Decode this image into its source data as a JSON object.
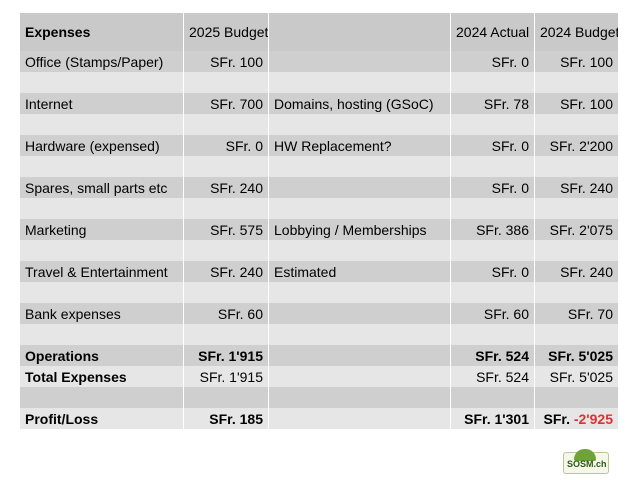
{
  "table": {
    "headers": [
      "Expenses",
      "2025 Budget",
      "",
      "2024 Actual",
      "2024 Budget"
    ],
    "rows": [
      {
        "label": "Office (Stamps/Paper)",
        "b2025": "SFr. 100",
        "note": "",
        "a2024": "SFr. 0",
        "b2024": "SFr. 100"
      },
      {
        "label": "",
        "b2025": "",
        "note": "",
        "a2024": "",
        "b2024": ""
      },
      {
        "label": "Internet",
        "b2025": "SFr. 700",
        "note": "Domains, hosting (GSoC)",
        "a2024": "SFr. 78",
        "b2024": "SFr. 100"
      },
      {
        "label": "",
        "b2025": "",
        "note": "",
        "a2024": "",
        "b2024": ""
      },
      {
        "label": "Hardware (expensed)",
        "b2025": "SFr. 0",
        "note": "HW Replacement?",
        "a2024": "SFr. 0",
        "b2024": "SFr. 2'200"
      },
      {
        "label": "",
        "b2025": "",
        "note": "",
        "a2024": "",
        "b2024": ""
      },
      {
        "label": "Spares, small parts etc",
        "b2025": "SFr. 240",
        "note": "",
        "a2024": "SFr. 0",
        "b2024": "SFr. 240"
      },
      {
        "label": "",
        "b2025": "",
        "note": "",
        "a2024": "",
        "b2024": ""
      },
      {
        "label": "Marketing",
        "b2025": "SFr. 575",
        "note": "Lobbying / Memberships",
        "a2024": "SFr. 386",
        "b2024": "SFr. 2'075"
      },
      {
        "label": "",
        "b2025": "",
        "note": "",
        "a2024": "",
        "b2024": ""
      },
      {
        "label": "Travel & Entertainment",
        "b2025": "SFr. 240",
        "note": "Estimated",
        "a2024": "SFr. 0",
        "b2024": "SFr. 240"
      },
      {
        "label": "",
        "b2025": "",
        "note": "",
        "a2024": "",
        "b2024": ""
      },
      {
        "label": "Bank expenses",
        "b2025": "SFr. 60",
        "note": "",
        "a2024": "SFr. 60",
        "b2024": "SFr. 70"
      },
      {
        "label": "",
        "b2025": "",
        "note": "",
        "a2024": "",
        "b2024": ""
      },
      {
        "label": "Operations",
        "b2025": "SFr. 1'915",
        "note": "",
        "a2024": "SFr. 524",
        "b2024": "SFr. 5'025"
      },
      {
        "label": "Total Expenses",
        "b2025": "SFr. 1'915",
        "note": "",
        "a2024": "SFr. 524",
        "b2024": "SFr. 5'025"
      },
      {
        "label": "",
        "b2025": "",
        "note": "",
        "a2024": "",
        "b2024": ""
      },
      {
        "label": "Profit/Loss",
        "b2025": "SFr. 185",
        "note": "",
        "a2024": "SFr. 1'301",
        "b2024_prefix": "SFr. ",
        "b2024_value": "-2'925"
      }
    ]
  },
  "logo": {
    "text": "SOSM.ch"
  },
  "colors": {
    "header_bg": "#c9c9c9",
    "row_dark": "#cfcfcf",
    "row_light": "#e6e6e6",
    "negative": "#e03030"
  }
}
